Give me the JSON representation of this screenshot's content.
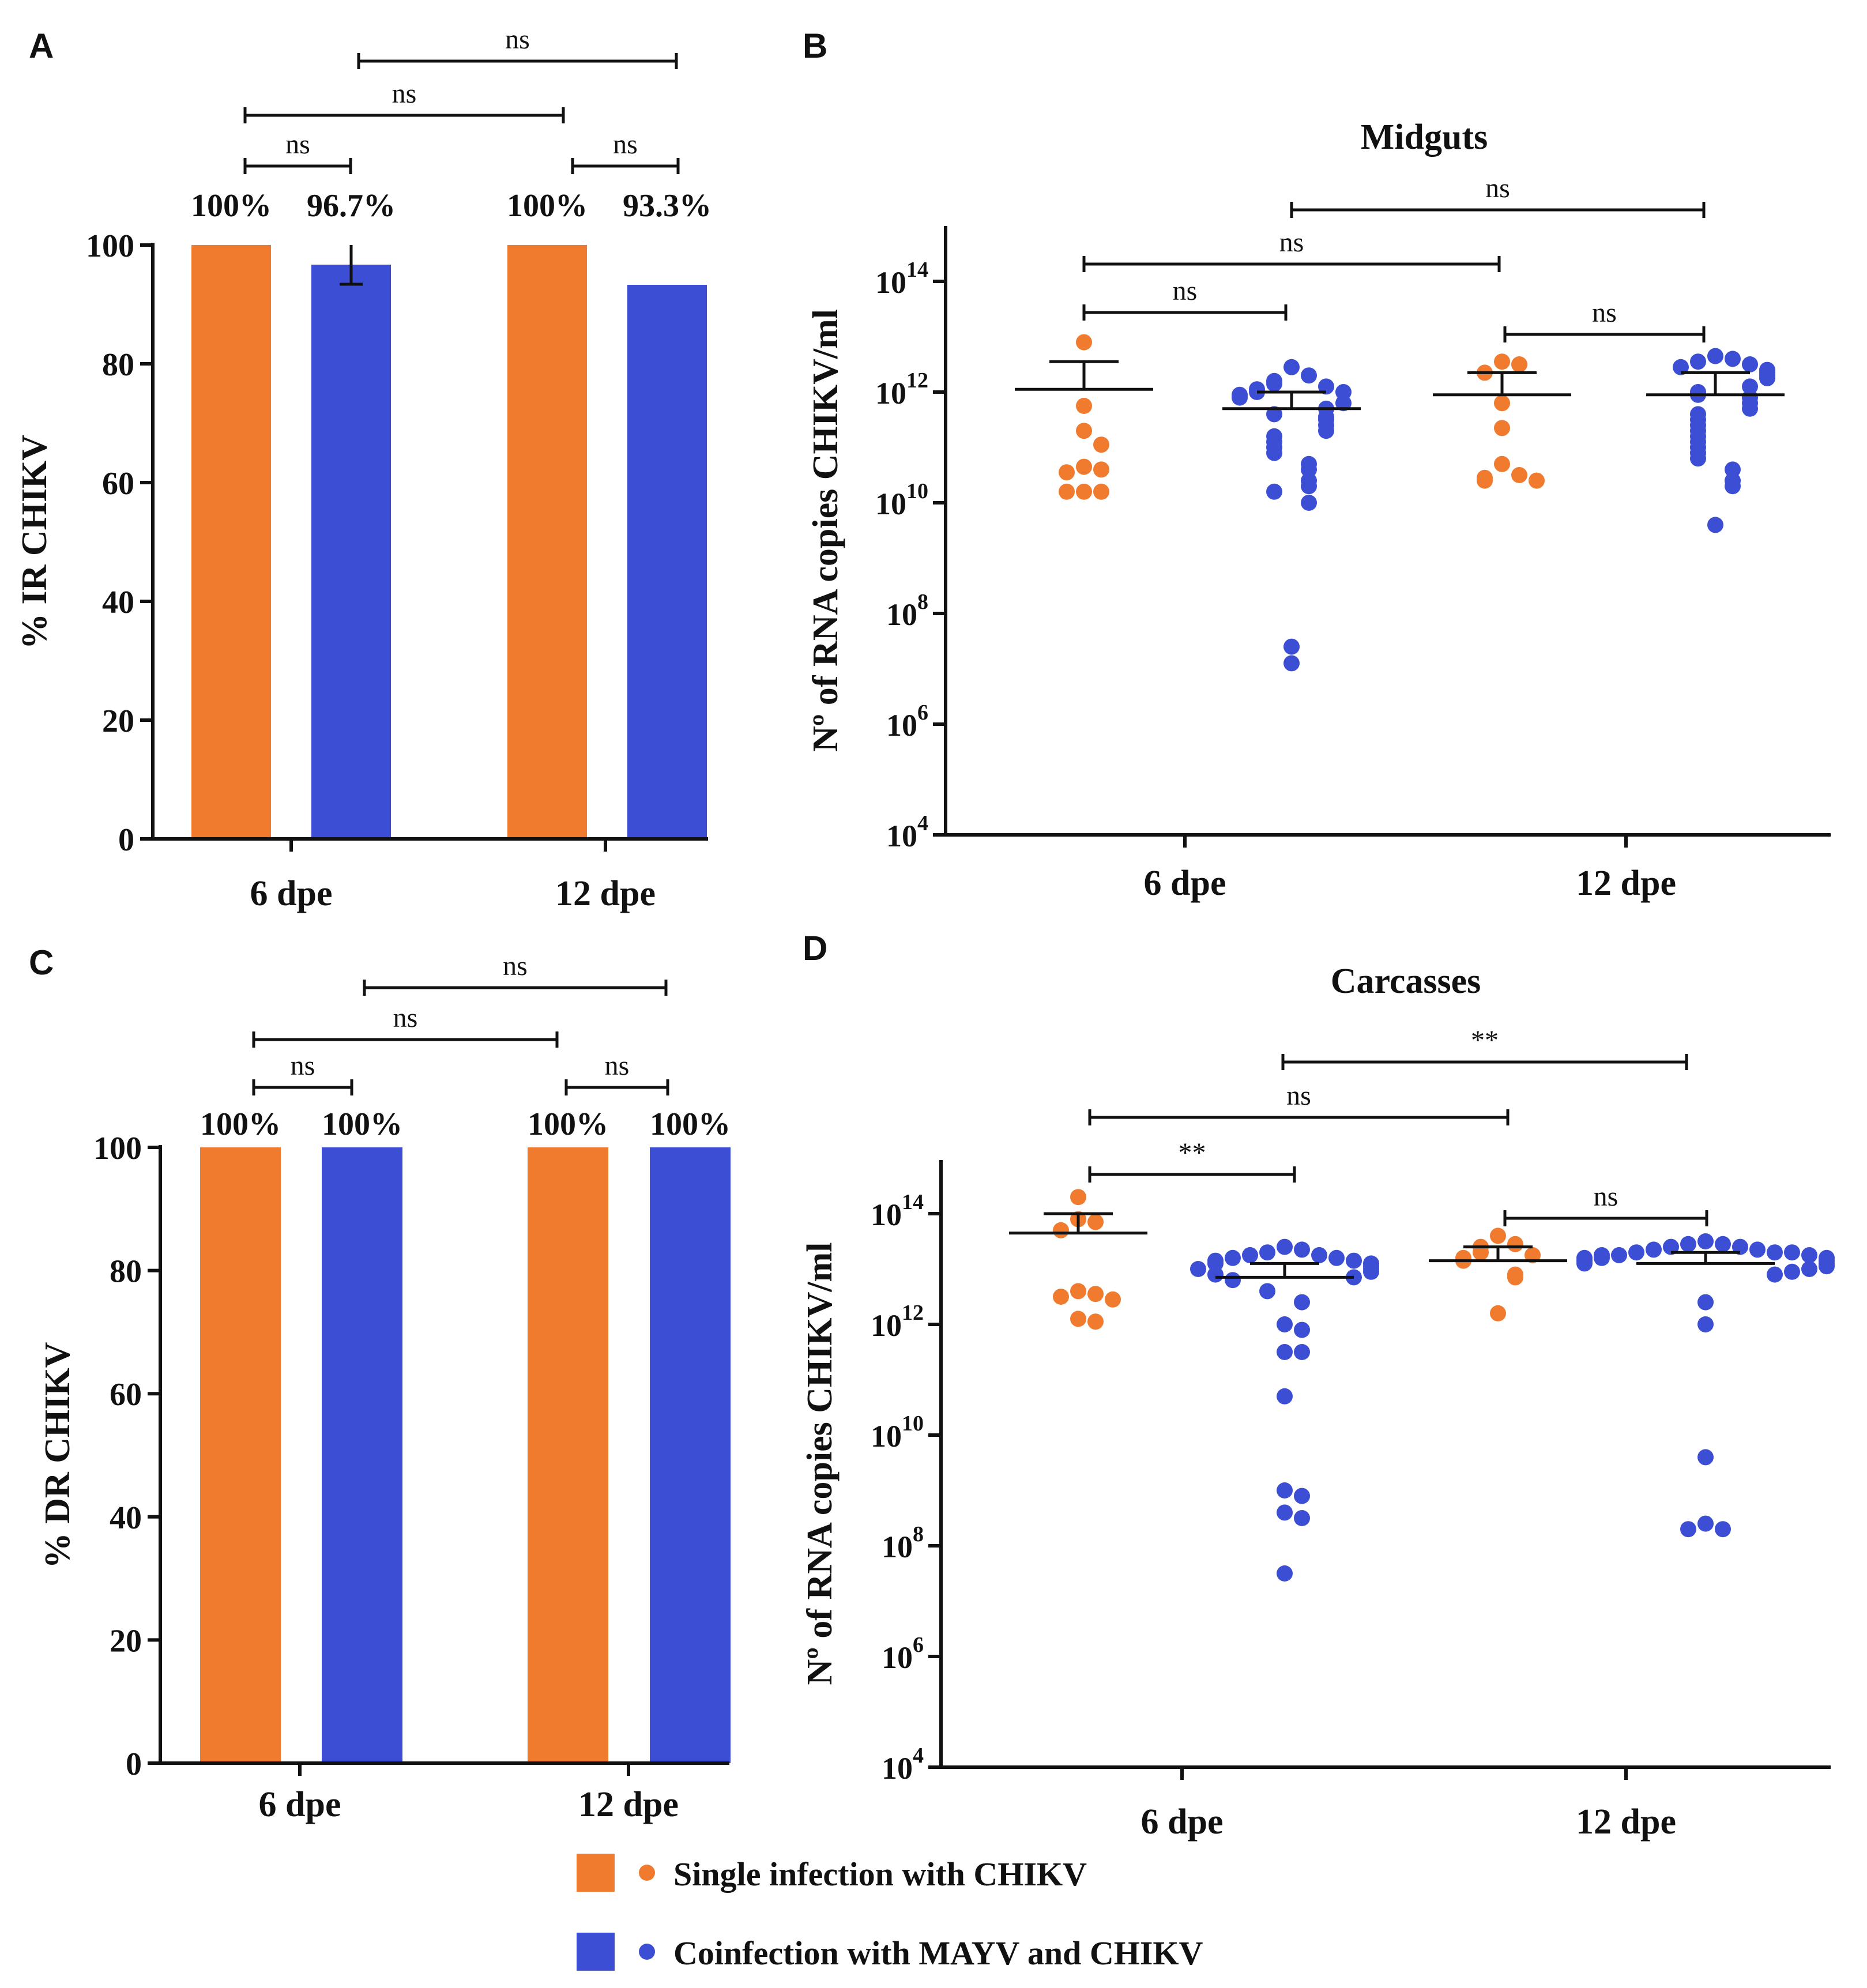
{
  "colors": {
    "single": "#F07A2E",
    "coinf": "#3C4ED4",
    "axis": "#111111"
  },
  "legend": {
    "single_label": "Single infection with CHIKV",
    "coinf_label": "Coinfection with MAYV and CHIKV"
  },
  "chart_data": [
    {
      "panel": "A",
      "type": "bar",
      "ylabel": "% IR CHIKV",
      "ylim": [
        0,
        100
      ],
      "yticks": [
        0,
        20,
        40,
        60,
        80,
        100
      ],
      "categories": [
        "6 dpe",
        "12 dpe"
      ],
      "series": [
        {
          "name": "Single infection with CHIKV",
          "values": [
            100,
            100
          ],
          "labels": [
            "100%",
            "100%"
          ]
        },
        {
          "name": "Coinfection with MAYV and CHIKV",
          "values": [
            96.7,
            93.3
          ],
          "labels": [
            "96.7%",
            "93.3%"
          ],
          "error": [
            3.3,
            0
          ]
        }
      ],
      "comparisons": [
        {
          "from": "6 dpe single",
          "to": "6 dpe coinfection",
          "label": "ns"
        },
        {
          "from": "12 dpe single",
          "to": "12 dpe coinfection",
          "label": "ns"
        },
        {
          "from": "6 dpe single",
          "to": "12 dpe single",
          "label": "ns"
        },
        {
          "from": "6 dpe coinfection",
          "to": "12 dpe coinfection",
          "label": "ns"
        }
      ]
    },
    {
      "panel": "B",
      "type": "scatter",
      "title": "Midguts",
      "ylabel": "Nº of RNA copies CHIKV/ml",
      "yscale": "log",
      "ylim_exp": [
        4,
        15
      ],
      "ytick_exps": [
        4,
        6,
        8,
        10,
        12,
        14
      ],
      "categories": [
        "6 dpe",
        "12 dpe"
      ],
      "groups": [
        {
          "category": "6 dpe",
          "series": "single",
          "mean_exp": 12.05,
          "sem_upper_exp": 12.55,
          "points_exp": [
            12.9,
            11.75,
            11.3,
            11.05,
            10.65,
            10.6,
            10.55,
            10.2,
            10.2,
            10.2
          ]
        },
        {
          "category": "6 dpe",
          "series": "coinf",
          "mean_exp": 11.7,
          "sem_upper_exp": 12.0,
          "points_exp": [
            12.45,
            12.3,
            12.2,
            12.15,
            12.1,
            12.05,
            12.0,
            12.0,
            11.95,
            11.9,
            11.8,
            11.7,
            11.6,
            11.55,
            11.5,
            11.4,
            11.3,
            11.2,
            11.1,
            11.0,
            10.9,
            10.7,
            10.6,
            10.4,
            10.3,
            10.2,
            10.0,
            7.4,
            7.1
          ]
        },
        {
          "category": "12 dpe",
          "series": "single",
          "mean_exp": 11.95,
          "sem_upper_exp": 12.35,
          "points_exp": [
            12.55,
            12.5,
            12.35,
            11.8,
            11.35,
            10.7,
            10.5,
            10.45,
            10.4,
            10.4
          ]
        },
        {
          "category": "12 dpe",
          "series": "coinf",
          "mean_exp": 11.95,
          "sem_upper_exp": 12.35,
          "points_exp": [
            12.65,
            12.6,
            12.55,
            12.5,
            12.45,
            12.4,
            12.35,
            12.3,
            12.25,
            12.1,
            12.0,
            11.95,
            11.9,
            11.8,
            11.7,
            11.6,
            11.5,
            11.4,
            11.3,
            11.2,
            11.1,
            11.0,
            10.9,
            10.8,
            10.6,
            10.4,
            10.3,
            9.6
          ]
        }
      ],
      "comparisons": [
        {
          "from": "6 dpe single",
          "to": "6 dpe coinfection",
          "label": "ns"
        },
        {
          "from": "12 dpe single",
          "to": "12 dpe coinfection",
          "label": "ns"
        },
        {
          "from": "6 dpe single",
          "to": "12 dpe single",
          "label": "ns"
        },
        {
          "from": "6 dpe coinfection",
          "to": "12 dpe coinfection",
          "label": "ns"
        }
      ]
    },
    {
      "panel": "C",
      "type": "bar",
      "ylabel": "% DR CHIKV",
      "ylim": [
        0,
        100
      ],
      "yticks": [
        0,
        20,
        40,
        60,
        80,
        100
      ],
      "categories": [
        "6 dpe",
        "12 dpe"
      ],
      "series": [
        {
          "name": "Single infection with CHIKV",
          "values": [
            100,
            100
          ],
          "labels": [
            "100%",
            "100%"
          ]
        },
        {
          "name": "Coinfection with MAYV and CHIKV",
          "values": [
            100,
            100
          ],
          "labels": [
            "100%",
            "100%"
          ]
        }
      ],
      "comparisons": [
        {
          "from": "6 dpe single",
          "to": "6 dpe coinfection",
          "label": "ns"
        },
        {
          "from": "12 dpe single",
          "to": "12 dpe coinfection",
          "label": "ns"
        },
        {
          "from": "6 dpe single",
          "to": "12 dpe single",
          "label": "ns"
        },
        {
          "from": "6 dpe coinfection",
          "to": "12 dpe coinfection",
          "label": "ns"
        }
      ]
    },
    {
      "panel": "D",
      "type": "scatter",
      "title": "Carcasses",
      "ylabel": "Nº of RNA copies CHIKV/ml",
      "yscale": "log",
      "ylim_exp": [
        4,
        15
      ],
      "ytick_exps": [
        4,
        6,
        8,
        10,
        12,
        14
      ],
      "categories": [
        "6 dpe",
        "12 dpe"
      ],
      "groups": [
        {
          "category": "6 dpe",
          "series": "single",
          "mean_exp": 13.65,
          "sem_upper_exp": 14.0,
          "points_exp": [
            14.3,
            13.9,
            13.85,
            13.7,
            12.6,
            12.55,
            12.5,
            12.45,
            12.1,
            12.05
          ]
        },
        {
          "category": "6 dpe",
          "series": "coinf",
          "mean_exp": 12.85,
          "sem_upper_exp": 13.1,
          "points_exp": [
            13.4,
            13.35,
            13.3,
            13.25,
            13.25,
            13.2,
            13.2,
            13.15,
            13.15,
            13.1,
            13.1,
            13.05,
            13.0,
            13.0,
            12.95,
            12.9,
            12.85,
            12.8,
            12.6,
            12.4,
            12.0,
            11.9,
            11.5,
            11.5,
            10.7,
            9.0,
            8.9,
            8.6,
            8.5,
            7.5
          ]
        },
        {
          "category": "12 dpe",
          "series": "single",
          "mean_exp": 13.15,
          "sem_upper_exp": 13.4,
          "points_exp": [
            13.6,
            13.45,
            13.4,
            13.3,
            13.25,
            13.2,
            13.15,
            12.9,
            12.85,
            12.2
          ]
        },
        {
          "category": "12 dpe",
          "series": "coinf",
          "mean_exp": 13.1,
          "sem_upper_exp": 13.3,
          "points_exp": [
            13.5,
            13.45,
            13.45,
            13.4,
            13.4,
            13.35,
            13.35,
            13.3,
            13.3,
            13.3,
            13.25,
            13.25,
            13.25,
            13.2,
            13.2,
            13.2,
            13.15,
            13.15,
            13.1,
            13.1,
            13.05,
            13.0,
            12.95,
            12.9,
            12.4,
            12.0,
            9.6,
            8.4,
            8.3,
            8.3
          ]
        }
      ],
      "comparisons": [
        {
          "from": "6 dpe single",
          "to": "6 dpe coinfection",
          "label": "**"
        },
        {
          "from": "12 dpe single",
          "to": "12 dpe coinfection",
          "label": "ns"
        },
        {
          "from": "6 dpe single",
          "to": "12 dpe single",
          "label": "ns"
        },
        {
          "from": "6 dpe coinfection",
          "to": "12 dpe coinfection",
          "label": "**"
        }
      ]
    }
  ]
}
